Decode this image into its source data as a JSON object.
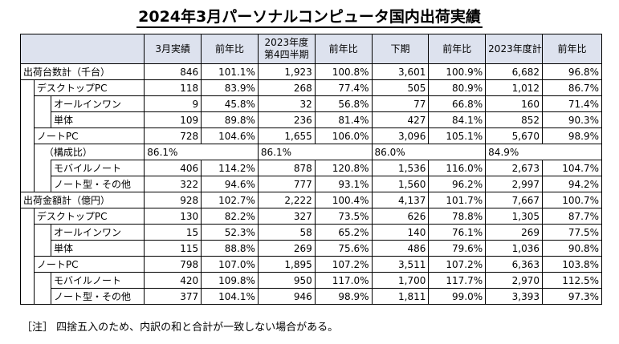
{
  "title": "2024年3月パーソナルコンピュータ国内出荷実績",
  "headers": [
    "3月実績",
    "前年比",
    "2023年度\n第4四半期",
    "前年比",
    "下期",
    "前年比",
    "2023年度計",
    "前年比"
  ],
  "rows": [
    {
      "label": "出荷台数計（千台）",
      "values": [
        "846",
        "101.1%",
        "1,923",
        "100.8%",
        "3,601",
        "100.9%",
        "6,682",
        "96.8%"
      ]
    },
    {
      "label": "デスクトップPC",
      "values": [
        "118",
        "83.9%",
        "268",
        "77.4%",
        "505",
        "80.9%",
        "1,012",
        "86.7%"
      ]
    },
    {
      "label": "オールインワン",
      "values": [
        "9",
        "45.8%",
        "32",
        "56.8%",
        "77",
        "66.8%",
        "160",
        "71.4%"
      ]
    },
    {
      "label": "単体",
      "values": [
        "109",
        "89.8%",
        "236",
        "81.4%",
        "427",
        "84.1%",
        "852",
        "90.3%"
      ]
    },
    {
      "label": "ノートPC",
      "values": [
        "728",
        "104.6%",
        "1,655",
        "106.0%",
        "3,096",
        "105.1%",
        "5,670",
        "98.9%"
      ]
    },
    {
      "label": "（構成比）",
      "values": [
        "86.1%",
        "",
        "86.1%",
        "",
        "86.0%",
        "",
        "84.9%",
        ""
      ]
    },
    {
      "label": "モバイルノート",
      "values": [
        "406",
        "114.2%",
        "878",
        "120.8%",
        "1,536",
        "116.0%",
        "2,673",
        "104.7%"
      ]
    },
    {
      "label": "ノート型・その他",
      "values": [
        "322",
        "94.6%",
        "777",
        "93.1%",
        "1,560",
        "96.2%",
        "2,997",
        "94.2%"
      ]
    },
    {
      "label": "出荷金額計（億円）",
      "values": [
        "928",
        "102.7%",
        "2,222",
        "100.4%",
        "4,137",
        "101.7%",
        "7,667",
        "100.7%"
      ]
    },
    {
      "label": "デスクトップPC",
      "values": [
        "130",
        "82.2%",
        "327",
        "73.5%",
        "626",
        "78.8%",
        "1,305",
        "87.7%"
      ]
    },
    {
      "label": "オールインワン",
      "values": [
        "15",
        "52.3%",
        "58",
        "65.2%",
        "140",
        "76.1%",
        "269",
        "77.5%"
      ]
    },
    {
      "label": "単体",
      "values": [
        "115",
        "88.8%",
        "269",
        "75.6%",
        "486",
        "79.6%",
        "1,036",
        "90.8%"
      ]
    },
    {
      "label": "ノートPC",
      "values": [
        "798",
        "107.0%",
        "1,895",
        "107.2%",
        "3,511",
        "107.2%",
        "6,363",
        "103.8%"
      ]
    },
    {
      "label": "モバイルノート",
      "values": [
        "420",
        "109.8%",
        "950",
        "117.0%",
        "1,700",
        "117.7%",
        "2,970",
        "112.5%"
      ]
    },
    {
      "label": "ノート型・その他",
      "values": [
        "377",
        "104.1%",
        "946",
        "98.9%",
        "1,811",
        "99.0%",
        "3,393",
        "97.3%"
      ]
    }
  ],
  "note": "［注］ 四捨五入のため、内訳の和と合計が一致しない場合がある。"
}
